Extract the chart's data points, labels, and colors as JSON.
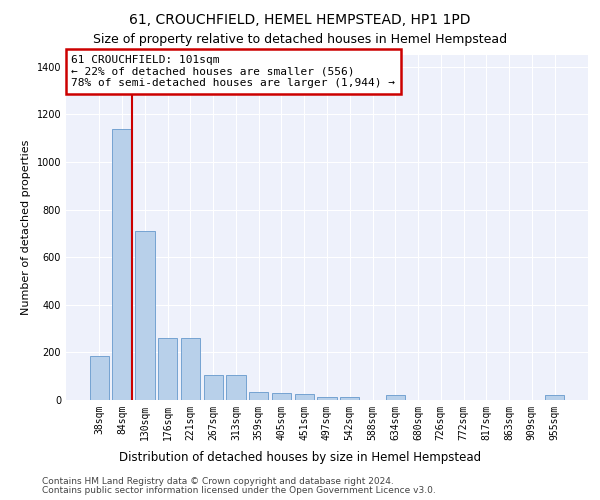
{
  "title1": "61, CROUCHFIELD, HEMEL HEMPSTEAD, HP1 1PD",
  "title2": "Size of property relative to detached houses in Hemel Hempstead",
  "xlabel": "Distribution of detached houses by size in Hemel Hempstead",
  "ylabel": "Number of detached properties",
  "categories": [
    "38sqm",
    "84sqm",
    "130sqm",
    "176sqm",
    "221sqm",
    "267sqm",
    "313sqm",
    "359sqm",
    "405sqm",
    "451sqm",
    "497sqm",
    "542sqm",
    "588sqm",
    "634sqm",
    "680sqm",
    "726sqm",
    "772sqm",
    "817sqm",
    "863sqm",
    "909sqm",
    "955sqm"
  ],
  "values": [
    185,
    1140,
    710,
    260,
    260,
    105,
    105,
    35,
    30,
    25,
    12,
    12,
    0,
    20,
    0,
    0,
    0,
    0,
    0,
    0,
    20
  ],
  "bar_color": "#b8d0ea",
  "bar_edge_color": "#6699cc",
  "redline_x": 1.5,
  "annotation_text": "61 CROUCHFIELD: 101sqm\n← 22% of detached houses are smaller (556)\n78% of semi-detached houses are larger (1,944) →",
  "annotation_box_color": "#ffffff",
  "annotation_box_edge_color": "#cc0000",
  "ylim": [
    0,
    1450
  ],
  "yticks": [
    0,
    200,
    400,
    600,
    800,
    1000,
    1200,
    1400
  ],
  "background_color": "#eef1fb",
  "grid_color": "#ffffff",
  "footer1": "Contains HM Land Registry data © Crown copyright and database right 2024.",
  "footer2": "Contains public sector information licensed under the Open Government Licence v3.0.",
  "title1_fontsize": 10,
  "title2_fontsize": 9,
  "xlabel_fontsize": 8.5,
  "ylabel_fontsize": 8,
  "tick_fontsize": 7,
  "footer_fontsize": 6.5,
  "annot_fontsize": 8
}
